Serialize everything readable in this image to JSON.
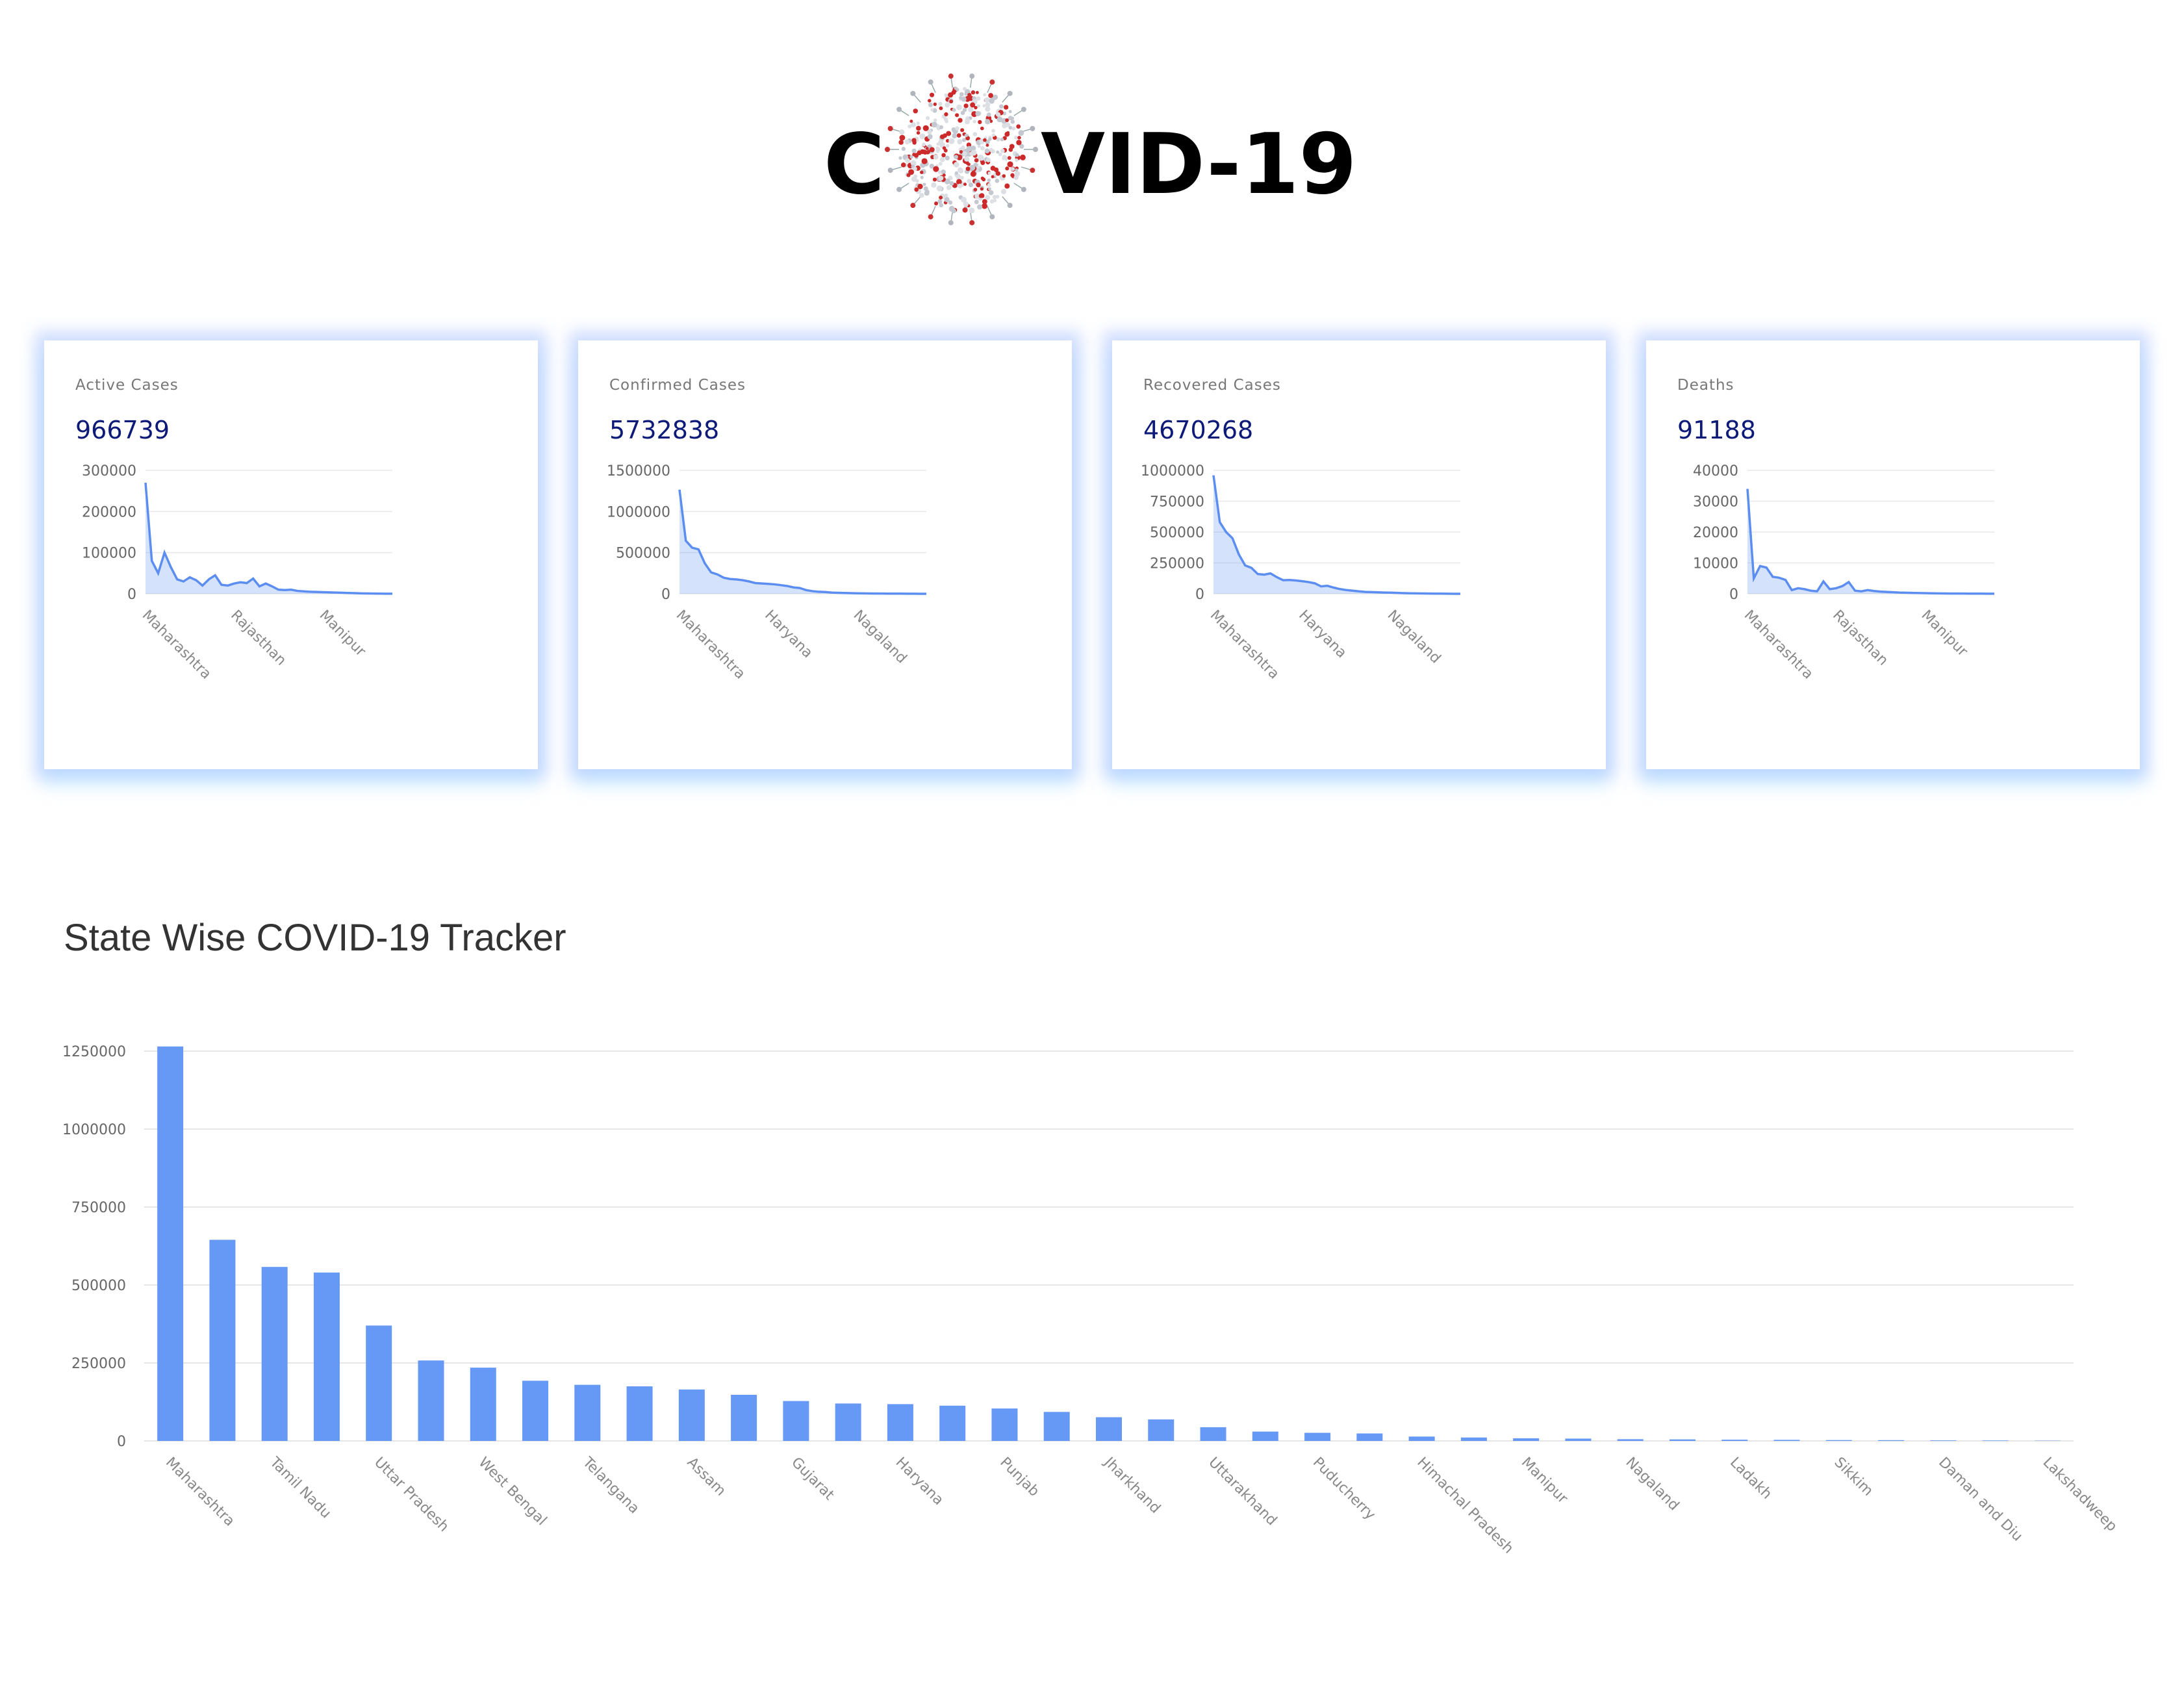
{
  "logo": {
    "prefix": "C",
    "suffix": "VID-19"
  },
  "cards": [
    {
      "label": "Active Cases",
      "value": "966739",
      "chart": {
        "type": "area",
        "ylim": [
          0,
          300000
        ],
        "yticks": [
          "300000",
          "200000",
          "100000",
          "0"
        ],
        "xticks": [
          {
            "label": "Maharashtra",
            "index": 0
          },
          {
            "label": "Rajasthan",
            "index": 14
          },
          {
            "label": "Manipur",
            "index": 28
          }
        ],
        "values": [
          270000,
          80000,
          50000,
          100000,
          65000,
          35000,
          30000,
          40000,
          33000,
          20000,
          35000,
          45000,
          22000,
          20000,
          25000,
          28000,
          26000,
          37000,
          18000,
          25000,
          18000,
          10000,
          9000,
          10000,
          7000,
          6000,
          5000,
          4500,
          4000,
          3500,
          3000,
          2500,
          2000,
          1500,
          1000,
          800,
          600,
          400,
          200,
          100
        ]
      }
    },
    {
      "label": "Confirmed Cases",
      "value": "5732838",
      "chart": {
        "type": "area",
        "ylim": [
          0,
          1500000
        ],
        "yticks": [
          "1500000",
          "1000000",
          "500000",
          "0"
        ],
        "xticks": [
          {
            "label": "Maharashtra",
            "index": 0
          },
          {
            "label": "Haryana",
            "index": 14
          },
          {
            "label": "Nagaland",
            "index": 28
          }
        ],
        "values": [
          1265000,
          645000,
          560000,
          540000,
          370000,
          260000,
          235000,
          195000,
          180000,
          175000,
          165000,
          150000,
          130000,
          125000,
          120000,
          115000,
          105000,
          95000,
          78000,
          70000,
          45000,
          32000,
          25000,
          22000,
          15000,
          12000,
          10000,
          8000,
          6000,
          5000,
          3500,
          3000,
          2500,
          2000,
          1800,
          1500,
          1000,
          500,
          300,
          100
        ]
      }
    },
    {
      "label": "Recovered Cases",
      "value": "4670268",
      "chart": {
        "type": "area",
        "ylim": [
          0,
          1000000
        ],
        "yticks": [
          "1000000",
          "750000",
          "500000",
          "250000",
          "0"
        ],
        "xticks": [
          {
            "label": "Maharashtra",
            "index": 0
          },
          {
            "label": "Haryana",
            "index": 14
          },
          {
            "label": "Nagaland",
            "index": 28
          }
        ],
        "values": [
          960000,
          580000,
          500000,
          450000,
          320000,
          230000,
          210000,
          160000,
          155000,
          165000,
          135000,
          110000,
          112000,
          108000,
          102000,
          95000,
          85000,
          60000,
          65000,
          50000,
          38000,
          30000,
          25000,
          20000,
          15000,
          14000,
          12000,
          10000,
          9000,
          7000,
          5000,
          4000,
          3000,
          2500,
          2000,
          1500,
          1000,
          600,
          300,
          100
        ]
      }
    },
    {
      "label": "Deaths",
      "value": "91188",
      "chart": {
        "type": "area",
        "ylim": [
          0,
          40000
        ],
        "yticks": [
          "40000",
          "30000",
          "20000",
          "10000",
          "0"
        ],
        "xticks": [
          {
            "label": "Maharashtra",
            "index": 0
          },
          {
            "label": "Rajasthan",
            "index": 14
          },
          {
            "label": "Manipur",
            "index": 28
          }
        ],
        "values": [
          34000,
          5000,
          9000,
          8500,
          5500,
          5200,
          4500,
          1200,
          1800,
          1500,
          1000,
          800,
          4000,
          1500,
          1800,
          2500,
          3800,
          1000,
          800,
          1200,
          900,
          700,
          600,
          500,
          400,
          350,
          300,
          250,
          200,
          150,
          120,
          100,
          90,
          80,
          70,
          60,
          50,
          40,
          30,
          20
        ]
      }
    }
  ],
  "section_title": "State Wise COVID-19 Tracker",
  "chart_data": {
    "type": "bar",
    "title": "State Wise COVID-19 Tracker",
    "ylim": [
      0,
      1250000
    ],
    "yticks": [
      "1250000",
      "1000000",
      "750000",
      "500000",
      "250000",
      "0"
    ],
    "categories": [
      "Maharashtra",
      "",
      "Tamil Nadu",
      "",
      "Uttar Pradesh",
      "",
      "West Bengal",
      "",
      "Telangana",
      "",
      "Assam",
      "",
      "Gujarat",
      "",
      "Haryana",
      "",
      "Punjab",
      "",
      "Jharkhand",
      "",
      "Uttarakhand",
      "",
      "Puducherry",
      "",
      "Himachal Pradesh",
      "",
      "Manipur",
      "",
      "Nagaland",
      "",
      "Ladakh",
      "",
      "Sikkim",
      "",
      "Daman and Diu",
      "",
      "Lakshadweep"
    ],
    "values": [
      1265000,
      645000,
      558000,
      540000,
      370000,
      258000,
      235000,
      193000,
      180000,
      175000,
      165000,
      148000,
      128000,
      120000,
      118000,
      113000,
      104000,
      93000,
      76000,
      69000,
      44000,
      30000,
      26000,
      24000,
      14000,
      11000,
      8500,
      7500,
      5500,
      5000,
      4000,
      3500,
      2800,
      2500,
      1800,
      1500,
      800
    ],
    "color": "#6698f6",
    "grid": true
  }
}
